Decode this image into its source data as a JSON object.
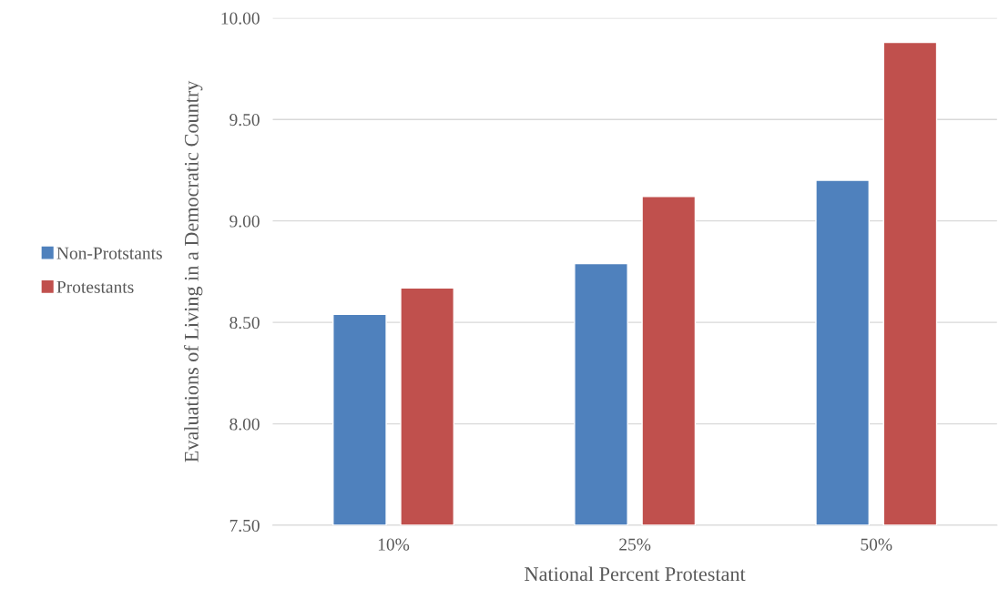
{
  "chart_data": {
    "type": "bar",
    "xlabel": "National Percent Protestant",
    "ylabel": "Evaluations of Living in a Democratic Country",
    "categories": [
      "10%",
      "25%",
      "50%"
    ],
    "series": [
      {
        "name": "Non-Protstants",
        "color": "#4f81bd",
        "values": [
          8.54,
          8.79,
          9.2
        ]
      },
      {
        "name": "Protestants",
        "color": "#c0504d",
        "values": [
          8.67,
          9.12,
          9.88
        ]
      }
    ],
    "ylim": [
      7.5,
      10.0
    ],
    "yticks": [
      {
        "value": 7.5,
        "label": "7.50"
      },
      {
        "value": 8.0,
        "label": "8.00"
      },
      {
        "value": 8.5,
        "label": "8.50"
      },
      {
        "value": 9.0,
        "label": "9.00"
      },
      {
        "value": 9.5,
        "label": "9.50"
      },
      {
        "value": 10.0,
        "label": "10.00"
      }
    ],
    "grid": "y",
    "legend": "left"
  }
}
